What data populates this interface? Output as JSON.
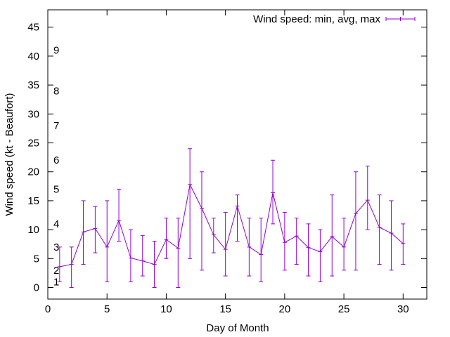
{
  "colors": {
    "series": "#9400d3",
    "axis": "#000000",
    "background": "#ffffff"
  },
  "chart_data": {
    "type": "line",
    "title": "",
    "xlabel": "Day of Month",
    "ylabel": "Wind speed (kt - Beaufort)",
    "xlim": [
      0,
      32
    ],
    "ylim": [
      -2,
      48
    ],
    "xticks": [
      0,
      5,
      10,
      15,
      20,
      25,
      30
    ],
    "yticks": [
      0,
      5,
      10,
      15,
      20,
      25,
      30,
      35,
      40,
      45
    ],
    "grid": false,
    "legend_position": "top-right",
    "beaufort_labels": [
      {
        "value": 1,
        "label": "1"
      },
      {
        "value": 3,
        "label": "2"
      },
      {
        "value": 7,
        "label": "3"
      },
      {
        "value": 11,
        "label": "4"
      },
      {
        "value": 17,
        "label": "5"
      },
      {
        "value": 22,
        "label": "6"
      },
      {
        "value": 28,
        "label": "7"
      },
      {
        "value": 34,
        "label": "8"
      },
      {
        "value": 41,
        "label": "9"
      }
    ],
    "series": [
      {
        "name": "Wind speed: min, avg, max",
        "x": [
          1,
          2,
          3,
          4,
          5,
          6,
          7,
          8,
          9,
          10,
          11,
          12,
          13,
          14,
          15,
          16,
          17,
          18,
          19,
          20,
          21,
          22,
          23,
          24,
          25,
          26,
          27,
          28,
          29,
          30
        ],
        "avg": [
          3.6,
          4,
          9.6,
          10.2,
          7,
          11.6,
          5.1,
          4.6,
          4,
          8.3,
          6.8,
          17.8,
          13.7,
          9.1,
          6.6,
          14.1,
          7,
          5.7,
          16.4,
          7.8,
          8.9,
          6.9,
          6.2,
          8.8,
          7,
          12.8,
          15.1,
          10.4,
          9.4,
          7.6
        ],
        "min": [
          1,
          0,
          4,
          6,
          1,
          8,
          1,
          2,
          0,
          5,
          0,
          5,
          3,
          6,
          2,
          8,
          2,
          1,
          11,
          3,
          4,
          2,
          1,
          2,
          3,
          3,
          10,
          4,
          3,
          4
        ],
        "max": [
          7,
          7,
          15,
          14,
          15,
          17,
          10,
          9,
          8,
          12,
          12,
          24,
          20,
          12,
          13,
          16,
          12,
          12,
          22,
          13,
          12,
          11,
          10,
          16,
          12,
          20,
          21,
          16,
          15,
          11
        ]
      }
    ]
  }
}
